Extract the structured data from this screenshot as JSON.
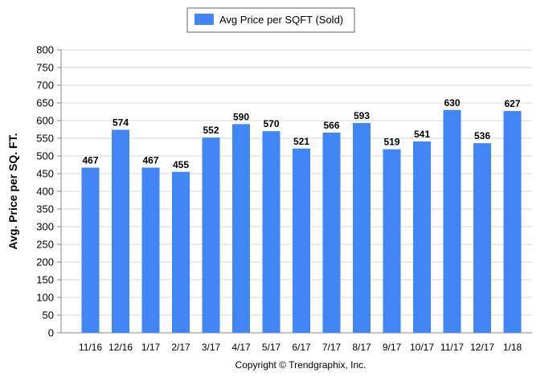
{
  "chart_data": {
    "type": "bar",
    "title": "",
    "xlabel": "",
    "ylabel": "Avg. Price per SQ. FT.",
    "categories": [
      "11/16",
      "12/16",
      "1/17",
      "2/17",
      "3/17",
      "4/17",
      "5/17",
      "6/17",
      "7/17",
      "8/17",
      "9/17",
      "10/17",
      "11/17",
      "12/17",
      "1/18"
    ],
    "series": [
      {
        "name": "Avg Price per SQFT (Sold)",
        "values": [
          467,
          574,
          467,
          455,
          552,
          590,
          570,
          521,
          566,
          593,
          519,
          541,
          630,
          536,
          627
        ],
        "color": "#4285f4"
      }
    ],
    "ylim": [
      0,
      800
    ],
    "yticks": [
      0,
      50,
      100,
      150,
      200,
      250,
      300,
      350,
      400,
      450,
      500,
      550,
      600,
      650,
      700,
      750,
      800
    ],
    "grid": true,
    "legend_position": "top-center",
    "data_labels": true
  },
  "copyright": "Copyright © Trendgraphix, Inc."
}
